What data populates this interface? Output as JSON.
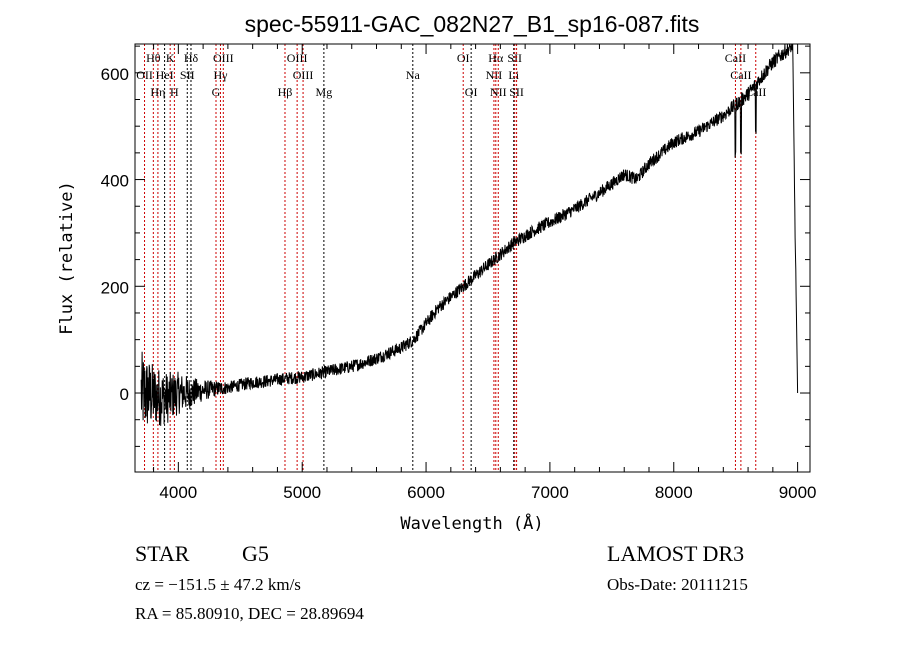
{
  "chart_data": {
    "type": "line",
    "title": "spec-55911-GAC_082N27_B1_sp16-087.fits",
    "xlabel": "Wavelength (Å)",
    "ylabel": "Flux (relative)",
    "xlim": [
      3650,
      9100
    ],
    "ylim": [
      -148,
      654
    ],
    "xticks": [
      4000,
      5000,
      6000,
      7000,
      8000,
      9000
    ],
    "yticks": [
      0,
      200,
      400,
      600
    ],
    "grid": false,
    "series": [
      {
        "name": "spectrum",
        "x": [
          3700,
          3800,
          3900,
          4000,
          4100,
          4200,
          4300,
          4400,
          4500,
          4600,
          4700,
          4800,
          4900,
          5000,
          5100,
          5200,
          5300,
          5400,
          5500,
          5600,
          5700,
          5800,
          5900,
          6000,
          6100,
          6200,
          6300,
          6400,
          6500,
          6600,
          6700,
          6800,
          6900,
          7000,
          7100,
          7200,
          7300,
          7400,
          7500,
          7600,
          7700,
          7800,
          7900,
          8000,
          8100,
          8200,
          8300,
          8400,
          8500,
          8600,
          8700,
          8800,
          8900,
          8960,
          8980,
          9000
        ],
        "y": [
          0,
          -5,
          -10,
          0,
          0,
          5,
          8,
          10,
          15,
          20,
          22,
          25,
          28,
          30,
          35,
          40,
          45,
          50,
          57,
          65,
          75,
          85,
          100,
          130,
          160,
          180,
          200,
          220,
          240,
          260,
          280,
          295,
          308,
          320,
          332,
          345,
          360,
          375,
          392,
          410,
          400,
          430,
          450,
          470,
          480,
          490,
          505,
          520,
          540,
          560,
          590,
          620,
          640,
          650,
          300,
          0
        ],
        "noise_amplitude": [
          80,
          60,
          50,
          40,
          30,
          20,
          15,
          12,
          12,
          12,
          12,
          12,
          12,
          12,
          12,
          12,
          12,
          12,
          12,
          12,
          12,
          12,
          12,
          12,
          12,
          12,
          12,
          12,
          12,
          12,
          12,
          12,
          12,
          12,
          12,
          12,
          12,
          12,
          12,
          12,
          12,
          12,
          12,
          12,
          12,
          12,
          12,
          12,
          14,
          14,
          14,
          14,
          14,
          10,
          10,
          0
        ]
      }
    ],
    "lines": [
      {
        "label": "OII",
        "wave": 3727,
        "row": 2,
        "red": true
      },
      {
        "label": "Hθ",
        "wave": 3798,
        "row": 1,
        "red": true
      },
      {
        "label": "Hη",
        "wave": 3835,
        "row": 3,
        "red": true
      },
      {
        "label": "HeI",
        "wave": 3889,
        "row": 2,
        "red": false
      },
      {
        "label": "K",
        "wave": 3934,
        "row": 1,
        "red": true
      },
      {
        "label": "H",
        "wave": 3968,
        "row": 3,
        "red": true
      },
      {
        "label": "SII",
        "wave": 4072,
        "row": 2,
        "red": false
      },
      {
        "label": "Hδ",
        "wave": 4102,
        "row": 1,
        "red": false
      },
      {
        "label": "G",
        "wave": 4304,
        "row": 3,
        "red": true
      },
      {
        "label": "Hγ",
        "wave": 4340,
        "row": 2,
        "red": true
      },
      {
        "label": "OIII",
        "wave": 4363,
        "row": 1,
        "red": true
      },
      {
        "label": "Hβ",
        "wave": 4861,
        "row": 3,
        "red": true
      },
      {
        "label": "OIII",
        "wave": 4959,
        "row": 1,
        "red": true
      },
      {
        "label": "OIII",
        "wave": 5007,
        "row": 2,
        "red": true
      },
      {
        "label": "Mg",
        "wave": 5175,
        "row": 3,
        "red": false
      },
      {
        "label": "Na",
        "wave": 5893,
        "row": 2,
        "red": false
      },
      {
        "label": "OI",
        "wave": 6300,
        "row": 1,
        "red": true
      },
      {
        "label": "OI",
        "wave": 6364,
        "row": 3,
        "red": false
      },
      {
        "label": "NII",
        "wave": 6548,
        "row": 2,
        "red": true
      },
      {
        "label": "Hα",
        "wave": 6563,
        "row": 1,
        "red": true
      },
      {
        "label": "NII",
        "wave": 6583,
        "row": 3,
        "red": true
      },
      {
        "label": "Li",
        "wave": 6708,
        "row": 2,
        "red": false
      },
      {
        "label": "SII",
        "wave": 6716,
        "row": 1,
        "red": true
      },
      {
        "label": "SII",
        "wave": 6731,
        "row": 3,
        "red": true
      },
      {
        "label": "CaII",
        "wave": 8498,
        "row": 1,
        "red": true
      },
      {
        "label": "CaII",
        "wave": 8542,
        "row": 2,
        "red": true
      },
      {
        "label": "CaII",
        "wave": 8662,
        "row": 3,
        "red": true
      }
    ]
  },
  "info": {
    "class": "STAR",
    "subclass": "G5",
    "survey": "LAMOST DR3",
    "cz": "cz = −151.5 ± 47.2 km/s",
    "obs_date": "Obs-Date: 20111215",
    "radec": "RA =  85.80910, DEC =  28.89694"
  },
  "colors": {
    "line_red": "#cc0000",
    "line_black": "#000000",
    "spectrum": "#000000"
  }
}
